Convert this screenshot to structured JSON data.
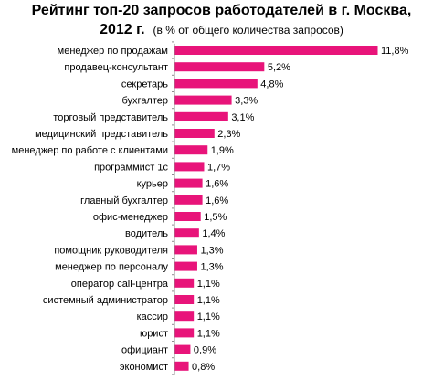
{
  "header": {
    "title": "Рейтинг топ-20 запросов  работодателей  в г. Москва,",
    "year": "2012 г.",
    "subtitle": "(в % от общего количества запросов)"
  },
  "chart_data": {
    "type": "bar",
    "orientation": "horizontal",
    "title": "Рейтинг топ-20 запросов  работодателей  в г. Москва, 2012 г.",
    "subtitle": "(в % от общего количества запросов)",
    "bar_color": "#E8147A",
    "grid": false,
    "legend": "none",
    "xlim": [
      0,
      11.8
    ],
    "categories": [
      "менеджер по продажам",
      "продавец-консультант",
      "секретарь",
      "бухгалтер",
      "торговый представитель",
      "медицинский представитель",
      "менеджер по работе с клиентами",
      "программист 1с",
      "курьер",
      "главный бухгалтер",
      "офис-менеджер",
      "водитель",
      "помощник руководителя",
      "менеджер по персоналу",
      "оператор call-центра",
      "системный администратор",
      "кассир",
      "юрист",
      "официант",
      "экономист"
    ],
    "values": [
      11.8,
      5.2,
      4.8,
      3.3,
      3.1,
      2.3,
      1.9,
      1.7,
      1.6,
      1.6,
      1.5,
      1.4,
      1.3,
      1.3,
      1.1,
      1.1,
      1.1,
      1.1,
      0.9,
      0.8
    ],
    "value_labels": [
      "11,8%",
      "5,2%",
      "4,8%",
      "3,3%",
      "3,1%",
      "2,3%",
      "1,9%",
      "1,7%",
      "1,6%",
      "1,6%",
      "1,5%",
      "1,4%",
      "1,3%",
      "1,3%",
      "1,1%",
      "1,1%",
      "1,1%",
      "1,1%",
      "0,9%",
      "0,8%"
    ]
  }
}
